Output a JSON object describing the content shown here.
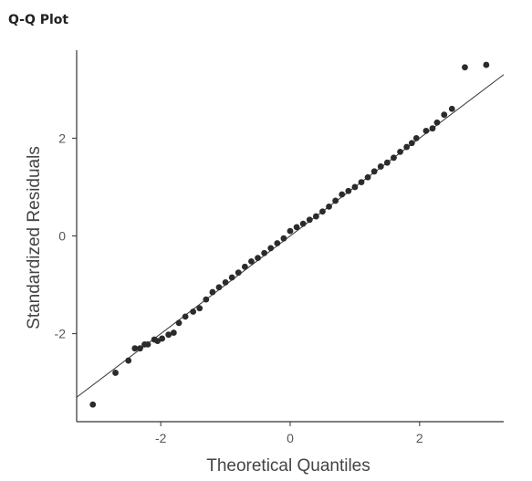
{
  "panel_title": "Q-Q Plot",
  "colors": {
    "points": "#2b2b2b",
    "line": "#333333",
    "axis": "#333333"
  },
  "chart_data": {
    "type": "scatter",
    "title": "",
    "xlabel": "Theoretical Quantiles",
    "ylabel": "Standardized Residuals",
    "xlim": [
      -3.3,
      3.3
    ],
    "ylim": [
      -3.8,
      3.8
    ],
    "x_ticks": [
      -2,
      0,
      2
    ],
    "x_tick_labels": [
      "-2",
      "0",
      "2"
    ],
    "y_ticks": [
      -2,
      0,
      2
    ],
    "y_tick_labels": [
      "-2",
      "0",
      "2"
    ],
    "grid": false,
    "reference_line": {
      "slope": 1,
      "intercept": 0
    },
    "series": [
      {
        "points": [
          [
            -3.05,
            -3.45
          ],
          [
            -2.7,
            -2.8
          ],
          [
            -2.5,
            -2.55
          ],
          [
            -2.4,
            -2.3
          ],
          [
            -2.32,
            -2.3
          ],
          [
            -2.25,
            -2.22
          ],
          [
            -2.2,
            -2.22
          ],
          [
            -2.1,
            -2.12
          ],
          [
            -2.05,
            -2.15
          ],
          [
            -1.98,
            -2.1
          ],
          [
            -1.88,
            -2.02
          ],
          [
            -1.8,
            -1.98
          ],
          [
            -1.72,
            -1.78
          ],
          [
            -1.62,
            -1.65
          ],
          [
            -1.5,
            -1.55
          ],
          [
            -1.4,
            -1.48
          ],
          [
            -1.3,
            -1.3
          ],
          [
            -1.2,
            -1.15
          ],
          [
            -1.1,
            -1.05
          ],
          [
            -1.0,
            -0.95
          ],
          [
            -0.9,
            -0.85
          ],
          [
            -0.8,
            -0.75
          ],
          [
            -0.7,
            -0.63
          ],
          [
            -0.6,
            -0.52
          ],
          [
            -0.5,
            -0.45
          ],
          [
            -0.4,
            -0.35
          ],
          [
            -0.3,
            -0.25
          ],
          [
            -0.2,
            -0.15
          ],
          [
            -0.1,
            -0.05
          ],
          [
            0.0,
            0.1
          ],
          [
            0.1,
            0.18
          ],
          [
            0.2,
            0.25
          ],
          [
            0.3,
            0.33
          ],
          [
            0.4,
            0.4
          ],
          [
            0.5,
            0.5
          ],
          [
            0.6,
            0.6
          ],
          [
            0.7,
            0.72
          ],
          [
            0.8,
            0.85
          ],
          [
            0.9,
            0.92
          ],
          [
            1.0,
            1.0
          ],
          [
            1.1,
            1.1
          ],
          [
            1.2,
            1.2
          ],
          [
            1.3,
            1.32
          ],
          [
            1.4,
            1.42
          ],
          [
            1.5,
            1.5
          ],
          [
            1.6,
            1.6
          ],
          [
            1.7,
            1.72
          ],
          [
            1.8,
            1.82
          ],
          [
            1.88,
            1.9
          ],
          [
            1.95,
            2.0
          ],
          [
            2.1,
            2.15
          ],
          [
            2.2,
            2.2
          ],
          [
            2.27,
            2.32
          ],
          [
            2.38,
            2.48
          ],
          [
            2.5,
            2.6
          ],
          [
            2.7,
            3.45
          ],
          [
            3.03,
            3.5
          ]
        ]
      }
    ]
  }
}
